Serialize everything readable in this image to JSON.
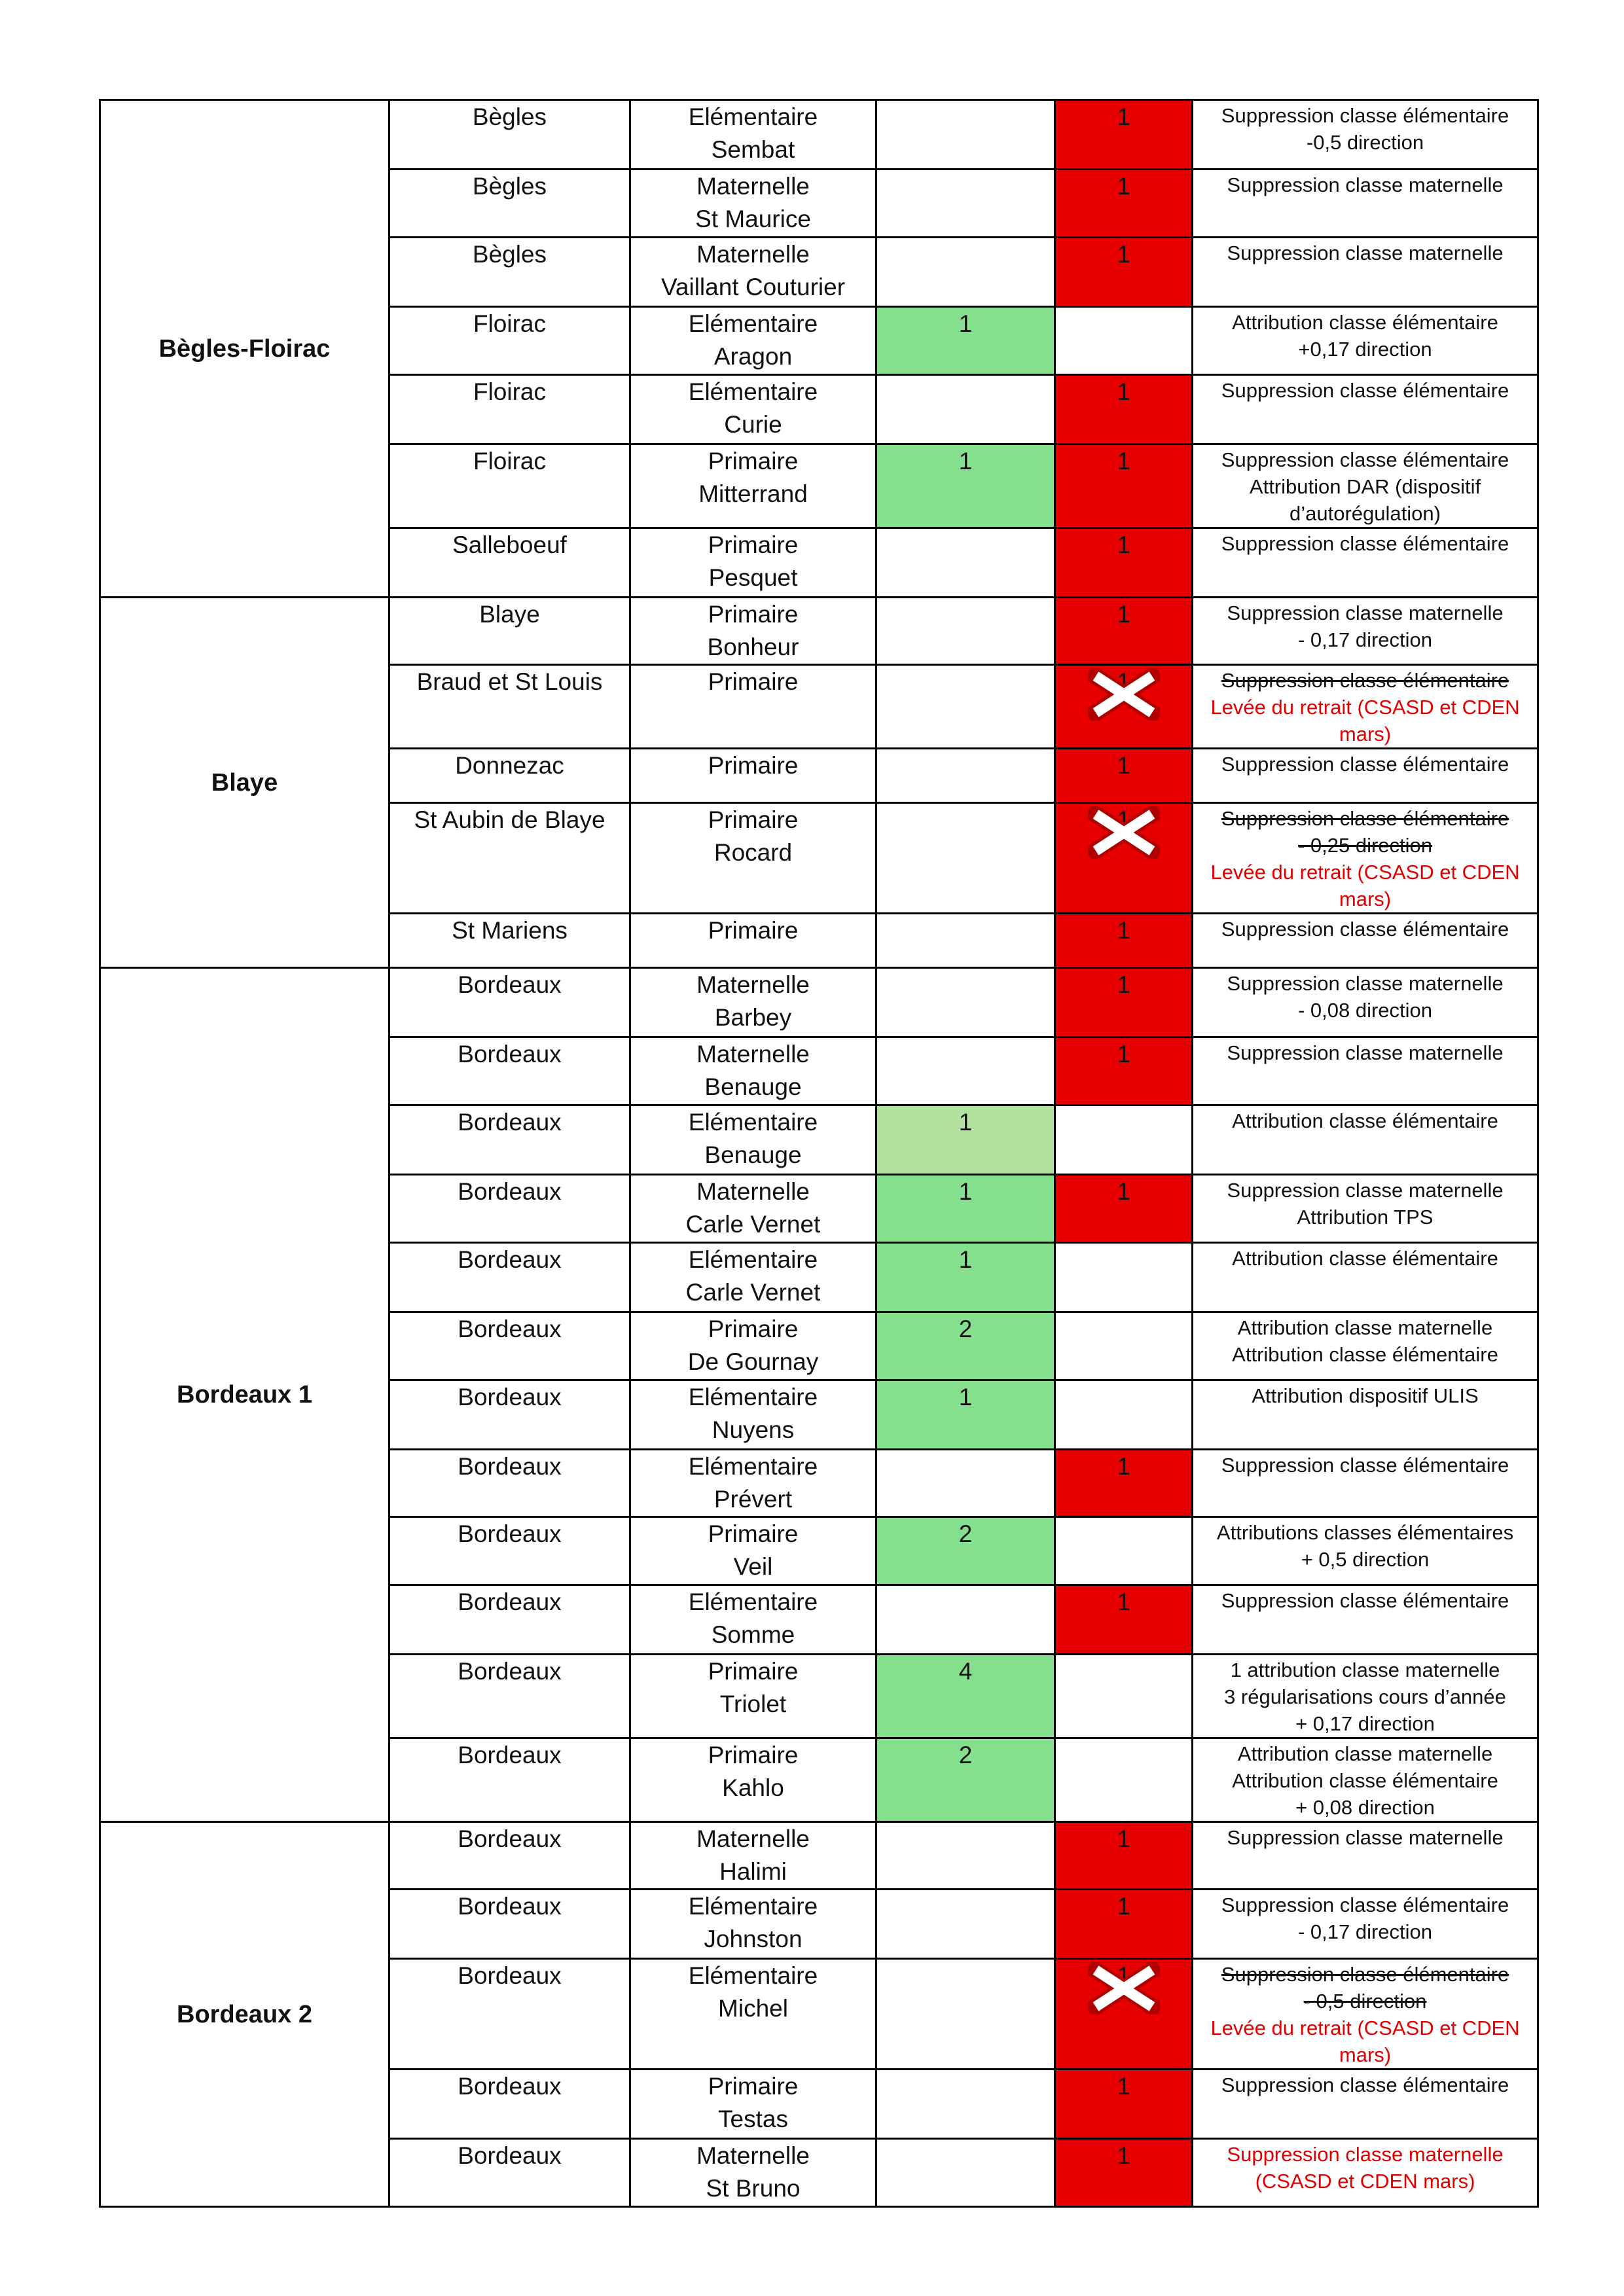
{
  "colors": {
    "plus": "#84e08c",
    "plus_light": "#b3e29f",
    "minus": "#e80000",
    "cancelled_text": "#e00000"
  },
  "groups": [
    {
      "name": "Bègles-Floirac",
      "rows": [
        {
          "commune": "Bègles",
          "school": [
            "Elémentaire",
            "Sembat"
          ],
          "plus": "",
          "minus": "1",
          "desc": [
            {
              "t": "Suppression classe élémentaire"
            },
            {
              "t": "-0,5 direction"
            }
          ]
        },
        {
          "commune": "Bègles",
          "school": [
            "Maternelle",
            "St Maurice"
          ],
          "plus": "",
          "minus": "1",
          "desc": [
            {
              "t": "Suppression classe maternelle"
            }
          ]
        },
        {
          "commune": "Bègles",
          "school": [
            "Maternelle",
            "Vaillant Couturier"
          ],
          "plus": "",
          "minus": "1",
          "desc": [
            {
              "t": "Suppression classe maternelle"
            }
          ]
        },
        {
          "commune": "Floirac",
          "school": [
            "Elémentaire",
            "Aragon"
          ],
          "plus": "1",
          "minus": "",
          "desc": [
            {
              "t": "Attribution classe élémentaire"
            },
            {
              "t": "+0,17 direction"
            }
          ]
        },
        {
          "commune": "Floirac",
          "school": [
            "Elémentaire",
            "Curie"
          ],
          "plus": "",
          "minus": "1",
          "desc": [
            {
              "t": "Suppression classe élémentaire"
            }
          ]
        },
        {
          "commune": "Floirac",
          "school": [
            "Primaire",
            "Mitterrand"
          ],
          "plus": "1",
          "minus": "1",
          "desc": [
            {
              "t": "Suppression classe élémentaire"
            },
            {
              "t": "Attribution DAR (dispositif"
            },
            {
              "t": "d’autorégulation)"
            }
          ]
        },
        {
          "commune": "Salleboeuf",
          "school": [
            "Primaire",
            "Pesquet"
          ],
          "plus": "",
          "minus": "1",
          "desc": [
            {
              "t": "Suppression classe élémentaire"
            }
          ]
        }
      ]
    },
    {
      "name": "Blaye",
      "rows": [
        {
          "commune": "Blaye",
          "school": [
            "Primaire",
            "Bonheur"
          ],
          "plus": "",
          "minus": "1",
          "desc": [
            {
              "t": "Suppression classe maternelle"
            },
            {
              "t": "- 0,17 direction"
            }
          ]
        },
        {
          "commune": "Braud et St Louis",
          "school": [
            "Primaire"
          ],
          "plus": "",
          "minus": "1",
          "cancelled": true,
          "desc": [
            {
              "t": "Suppression classe élémentaire",
              "s": "strike"
            },
            {
              "t": "Levée du retrait (CSASD et CDEN",
              "s": "red"
            },
            {
              "t": "mars)",
              "s": "red"
            }
          ]
        },
        {
          "commune": "Donnezac",
          "school": [
            "Primaire"
          ],
          "plus": "",
          "minus": "1",
          "desc": [
            {
              "t": "Suppression classe élémentaire"
            }
          ]
        },
        {
          "commune": "St Aubin de Blaye",
          "school": [
            "Primaire",
            "Rocard"
          ],
          "plus": "",
          "minus": "1",
          "cancelled": true,
          "desc": [
            {
              "t": "Suppression classe élémentaire",
              "s": "strike"
            },
            {
              "t": "- 0,25 direction",
              "s": "strike"
            },
            {
              "t": "Levée du retrait (CSASD et CDEN",
              "s": "red"
            },
            {
              "t": "mars)",
              "s": "red"
            }
          ]
        },
        {
          "commune": "St Mariens",
          "school": [
            "Primaire"
          ],
          "plus": "",
          "minus": "1",
          "desc": [
            {
              "t": "Suppression classe élémentaire"
            }
          ]
        }
      ]
    },
    {
      "name": "Bordeaux 1",
      "rows": [
        {
          "commune": "Bordeaux",
          "school": [
            "Maternelle",
            "Barbey"
          ],
          "plus": "",
          "minus": "1",
          "desc": [
            {
              "t": "Suppression classe maternelle"
            },
            {
              "t": "- 0,08 direction"
            }
          ]
        },
        {
          "commune": "Bordeaux",
          "school": [
            "Maternelle",
            "Benauge"
          ],
          "plus": "",
          "minus": "1",
          "desc": [
            {
              "t": "Suppression classe maternelle"
            }
          ]
        },
        {
          "commune": "Bordeaux",
          "school": [
            "Elémentaire",
            "Benauge"
          ],
          "plus": "1",
          "plus_light": true,
          "minus": "",
          "desc": [
            {
              "t": "Attribution classe élémentaire"
            }
          ]
        },
        {
          "commune": "Bordeaux",
          "school": [
            "Maternelle",
            "Carle Vernet"
          ],
          "plus": "1",
          "minus": "1",
          "desc": [
            {
              "t": "Suppression classe maternelle"
            },
            {
              "t": "Attribution TPS"
            }
          ]
        },
        {
          "commune": "Bordeaux",
          "school": [
            "Elémentaire",
            "Carle Vernet"
          ],
          "plus": "1",
          "minus": "",
          "desc": [
            {
              "t": "Attribution classe élémentaire"
            }
          ]
        },
        {
          "commune": "Bordeaux",
          "school": [
            "Primaire",
            "De Gournay"
          ],
          "plus": "2",
          "minus": "",
          "desc": [
            {
              "t": "Attribution classe maternelle"
            },
            {
              "t": "Attribution classe élémentaire"
            }
          ]
        },
        {
          "commune": "Bordeaux",
          "school": [
            "Elémentaire",
            "Nuyens"
          ],
          "plus": "1",
          "minus": "",
          "desc": [
            {
              "t": "Attribution dispositif ULIS"
            }
          ]
        },
        {
          "commune": "Bordeaux",
          "school": [
            "Elémentaire",
            "Prévert"
          ],
          "plus": "",
          "minus": "1",
          "desc": [
            {
              "t": "Suppression classe élémentaire"
            }
          ]
        },
        {
          "commune": "Bordeaux",
          "school": [
            "Primaire",
            "Veil"
          ],
          "plus": "2",
          "minus": "",
          "desc": [
            {
              "t": "Attributions classes élémentaires"
            },
            {
              "t": "+ 0,5 direction"
            }
          ]
        },
        {
          "commune": "Bordeaux",
          "school": [
            "Elémentaire",
            "Somme"
          ],
          "plus": "",
          "minus": "1",
          "desc": [
            {
              "t": "Suppression classe élémentaire"
            }
          ]
        },
        {
          "commune": "Bordeaux",
          "school": [
            "Primaire",
            "Triolet"
          ],
          "plus": "4",
          "minus": "",
          "desc": [
            {
              "t": "1 attribution classe maternelle"
            },
            {
              "t": "3 régularisations cours d’année"
            },
            {
              "t": "+ 0,17 direction"
            }
          ]
        },
        {
          "commune": "Bordeaux",
          "school": [
            "Primaire",
            "Kahlo"
          ],
          "plus": "2",
          "minus": "",
          "desc": [
            {
              "t": "Attribution classe maternelle"
            },
            {
              "t": "Attribution classe élémentaire"
            },
            {
              "t": "+ 0,08 direction"
            }
          ]
        }
      ]
    },
    {
      "name": "Bordeaux 2",
      "rows": [
        {
          "commune": "Bordeaux",
          "school": [
            "Maternelle",
            "Halimi"
          ],
          "plus": "",
          "minus": "1",
          "desc": [
            {
              "t": "Suppression classe maternelle"
            }
          ]
        },
        {
          "commune": "Bordeaux",
          "school": [
            "Elémentaire",
            "Johnston"
          ],
          "plus": "",
          "minus": "1",
          "desc": [
            {
              "t": "Suppression classe élémentaire"
            },
            {
              "t": "- 0,17 direction"
            }
          ]
        },
        {
          "commune": "Bordeaux",
          "school": [
            "Elémentaire",
            "Michel"
          ],
          "plus": "",
          "minus": "1",
          "cancelled": true,
          "desc": [
            {
              "t": "Suppression classe élémentaire",
              "s": "strike"
            },
            {
              "t": "- 0,5 direction",
              "s": "strike"
            },
            {
              "t": "Levée du retrait (CSASD et CDEN",
              "s": "red"
            },
            {
              "t": "mars)",
              "s": "red"
            }
          ]
        },
        {
          "commune": "Bordeaux",
          "school": [
            "Primaire",
            "Testas"
          ],
          "plus": "",
          "minus": "1",
          "desc": [
            {
              "t": "Suppression classe élémentaire"
            }
          ]
        },
        {
          "commune": "Bordeaux",
          "school": [
            "Maternelle",
            "St Bruno"
          ],
          "plus": "",
          "minus": "1",
          "desc": [
            {
              "t": "Suppression classe maternelle",
              "s": "red"
            },
            {
              "t": "(CSASD et CDEN mars)",
              "s": "red"
            }
          ]
        }
      ]
    }
  ]
}
